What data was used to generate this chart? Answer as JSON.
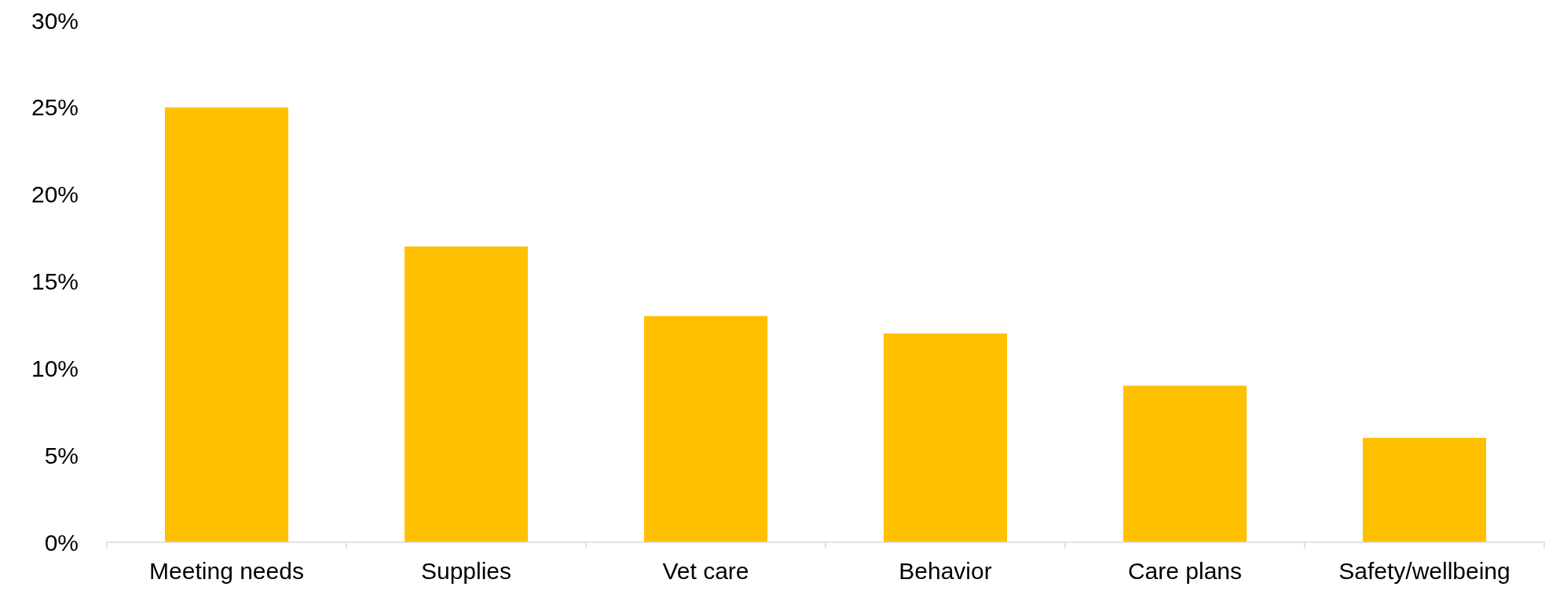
{
  "chart_data": {
    "type": "bar",
    "categories": [
      "Meeting needs",
      "Supplies",
      "Vet care",
      "Behavior",
      "Care plans",
      "Safety/wellbeing"
    ],
    "values": [
      25,
      17,
      13,
      12,
      9,
      6
    ],
    "color": "#ffc000",
    "ylim": [
      0,
      30
    ],
    "yticks": [
      {
        "value": 0,
        "label": "0%"
      },
      {
        "value": 5,
        "label": "5%"
      },
      {
        "value": 10,
        "label": "10%"
      },
      {
        "value": 15,
        "label": "15%"
      },
      {
        "value": 20,
        "label": "20%"
      },
      {
        "value": 25,
        "label": "25%"
      },
      {
        "value": 30,
        "label": "30%"
      }
    ],
    "grid": false
  }
}
